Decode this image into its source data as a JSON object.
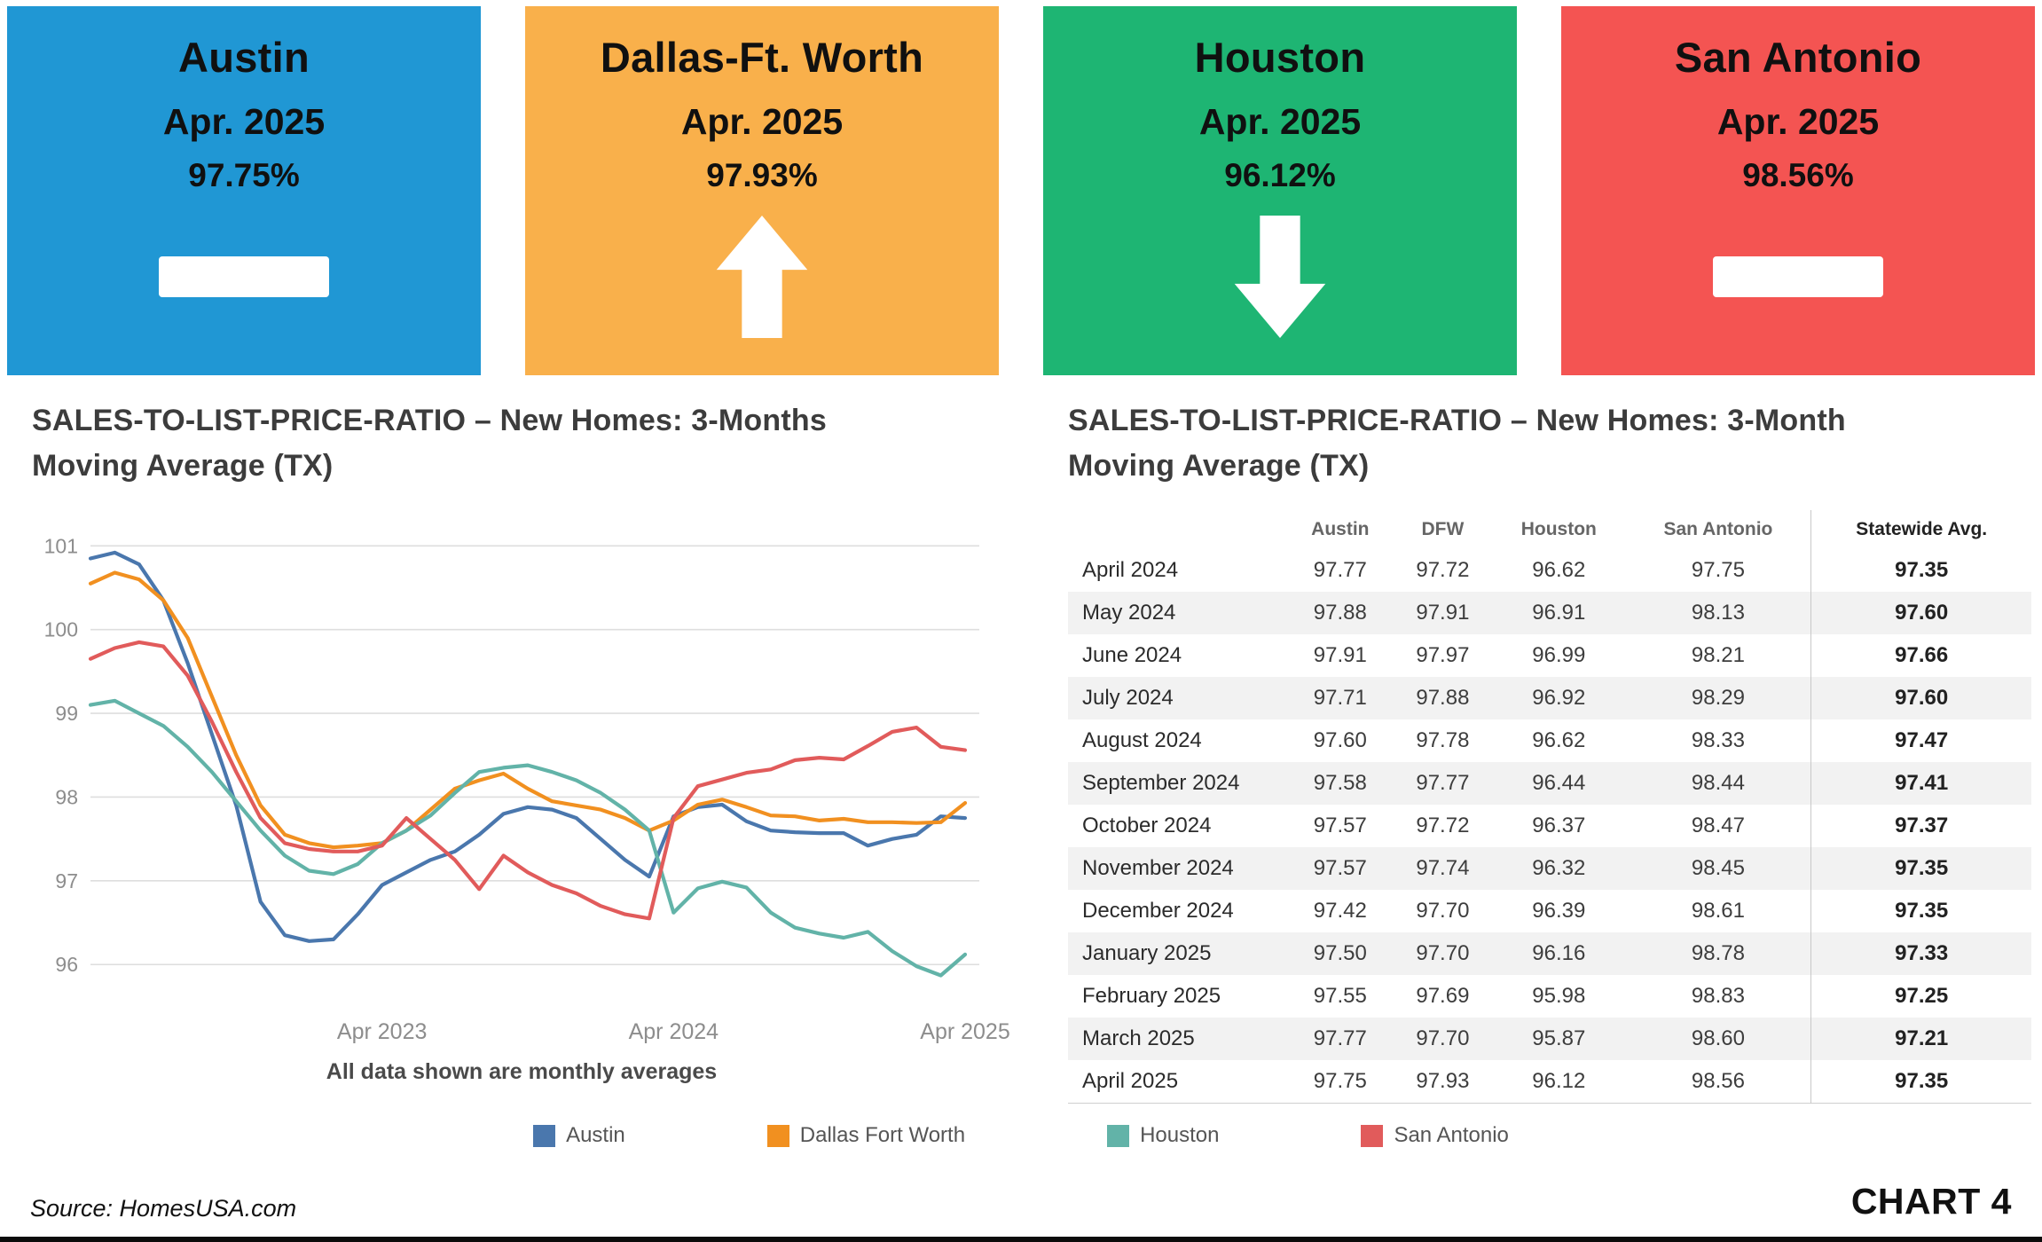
{
  "cards": [
    {
      "city": "Austin",
      "period": "Apr. 2025",
      "value": "97.75%",
      "trend": "flat",
      "color": "#2097d4"
    },
    {
      "city": "Dallas-Ft. Worth",
      "period": "Apr. 2025",
      "value": "97.93%",
      "trend": "up",
      "color": "#f9b04b"
    },
    {
      "city": "Houston",
      "period": "Apr. 2025",
      "value": "96.12%",
      "trend": "down",
      "color": "#1eb573"
    },
    {
      "city": "San Antonio",
      "period": "Apr. 2025",
      "value": "98.56%",
      "trend": "flat",
      "color": "#f45452"
    }
  ],
  "chart": {
    "title": "SALES-TO-LIST-PRICE-RATIO – New Homes: 3-Months Moving Average (TX)",
    "caption": "All data shown are monthly averages"
  },
  "chart_data": {
    "type": "line",
    "title": "SALES-TO-LIST-PRICE-RATIO – New Homes: 3-Months Moving Average (TX)",
    "xlabel": "",
    "ylabel": "",
    "ylim": [
      95.6,
      101.3
    ],
    "yticks": [
      96,
      97,
      98,
      99,
      100,
      101
    ],
    "grid": "horizontal",
    "legend_position": "bottom",
    "x": [
      "Apr 2022",
      "May 2022",
      "Jun 2022",
      "Jul 2022",
      "Aug 2022",
      "Sep 2022",
      "Oct 2022",
      "Nov 2022",
      "Dec 2022",
      "Jan 2023",
      "Feb 2023",
      "Mar 2023",
      "Apr 2023",
      "May 2023",
      "Jun 2023",
      "Jul 2023",
      "Aug 2023",
      "Sep 2023",
      "Oct 2023",
      "Nov 2023",
      "Dec 2023",
      "Jan 2024",
      "Feb 2024",
      "Mar 2024",
      "Apr 2024",
      "May 2024",
      "Jun 2024",
      "Jul 2024",
      "Aug 2024",
      "Sep 2024",
      "Oct 2024",
      "Nov 2024",
      "Dec 2024",
      "Jan 2025",
      "Feb 2025",
      "Mar 2025",
      "Apr 2025"
    ],
    "xticks": [
      {
        "index": 12,
        "label": "Apr 2023"
      },
      {
        "index": 24,
        "label": "Apr 2024"
      },
      {
        "index": 36,
        "label": "Apr 2025"
      }
    ],
    "series": [
      {
        "name": "Austin",
        "color": "#4a77ad",
        "values": [
          100.85,
          100.92,
          100.78,
          100.35,
          99.6,
          98.75,
          97.9,
          96.75,
          96.35,
          96.28,
          96.3,
          96.6,
          96.95,
          97.1,
          97.25,
          97.35,
          97.55,
          97.8,
          97.88,
          97.85,
          97.75,
          97.5,
          97.25,
          97.05,
          97.77,
          97.88,
          97.91,
          97.71,
          97.6,
          97.58,
          97.57,
          97.57,
          97.42,
          97.5,
          97.55,
          97.77,
          97.75
        ]
      },
      {
        "name": "Dallas Fort Worth",
        "color": "#f19020",
        "values": [
          100.55,
          100.68,
          100.6,
          100.35,
          99.9,
          99.2,
          98.5,
          97.9,
          97.55,
          97.45,
          97.4,
          97.42,
          97.45,
          97.6,
          97.85,
          98.1,
          98.2,
          98.28,
          98.1,
          97.95,
          97.9,
          97.85,
          97.75,
          97.6,
          97.72,
          97.91,
          97.97,
          97.88,
          97.78,
          97.77,
          97.72,
          97.74,
          97.7,
          97.7,
          97.69,
          97.7,
          97.93
        ]
      },
      {
        "name": "Houston",
        "color": "#62b3a8",
        "values": [
          99.1,
          99.15,
          99.0,
          98.85,
          98.6,
          98.3,
          97.95,
          97.6,
          97.3,
          97.12,
          97.08,
          97.2,
          97.45,
          97.6,
          97.78,
          98.05,
          98.3,
          98.35,
          98.38,
          98.3,
          98.2,
          98.05,
          97.85,
          97.6,
          96.62,
          96.91,
          96.99,
          96.92,
          96.62,
          96.44,
          96.37,
          96.32,
          96.39,
          96.16,
          95.98,
          95.87,
          96.12
        ]
      },
      {
        "name": "San Antonio",
        "color": "#e15b5b",
        "values": [
          99.65,
          99.78,
          99.85,
          99.8,
          99.45,
          98.9,
          98.3,
          97.75,
          97.45,
          97.38,
          97.35,
          97.35,
          97.42,
          97.75,
          97.5,
          97.25,
          96.9,
          97.3,
          97.1,
          96.95,
          96.85,
          96.7,
          96.6,
          96.55,
          97.75,
          98.13,
          98.21,
          98.29,
          98.33,
          98.44,
          98.47,
          98.45,
          98.61,
          98.78,
          98.83,
          98.6,
          98.56
        ]
      }
    ]
  },
  "table": {
    "title": "SALES-TO-LIST-PRICE-RATIO – New Homes:  3-Month Moving Average (TX)",
    "columns": [
      "",
      "Austin",
      "DFW",
      "Houston",
      "San Antonio",
      "Statewide Avg."
    ],
    "rows": [
      [
        "April 2024",
        "97.77",
        "97.72",
        "96.62",
        "97.75",
        "97.35"
      ],
      [
        "May 2024",
        "97.88",
        "97.91",
        "96.91",
        "98.13",
        "97.60"
      ],
      [
        "June 2024",
        "97.91",
        "97.97",
        "96.99",
        "98.21",
        "97.66"
      ],
      [
        "July 2024",
        "97.71",
        "97.88",
        "96.92",
        "98.29",
        "97.60"
      ],
      [
        "August 2024",
        "97.60",
        "97.78",
        "96.62",
        "98.33",
        "97.47"
      ],
      [
        "September 2024",
        "97.58",
        "97.77",
        "96.44",
        "98.44",
        "97.41"
      ],
      [
        "October 2024",
        "97.57",
        "97.72",
        "96.37",
        "98.47",
        "97.37"
      ],
      [
        "November 2024",
        "97.57",
        "97.74",
        "96.32",
        "98.45",
        "97.35"
      ],
      [
        "December 2024",
        "97.42",
        "97.70",
        "96.39",
        "98.61",
        "97.35"
      ],
      [
        "January 2025",
        "97.50",
        "97.70",
        "96.16",
        "98.78",
        "97.33"
      ],
      [
        "February 2025",
        "97.55",
        "97.69",
        "95.98",
        "98.83",
        "97.25"
      ],
      [
        "March 2025",
        "97.77",
        "97.70",
        "95.87",
        "98.60",
        "97.21"
      ],
      [
        "April 2025",
        "97.75",
        "97.93",
        "96.12",
        "98.56",
        "97.35"
      ]
    ]
  },
  "footer": {
    "source": "Source: HomesUSA.com",
    "chart_label": "CHART 4"
  }
}
